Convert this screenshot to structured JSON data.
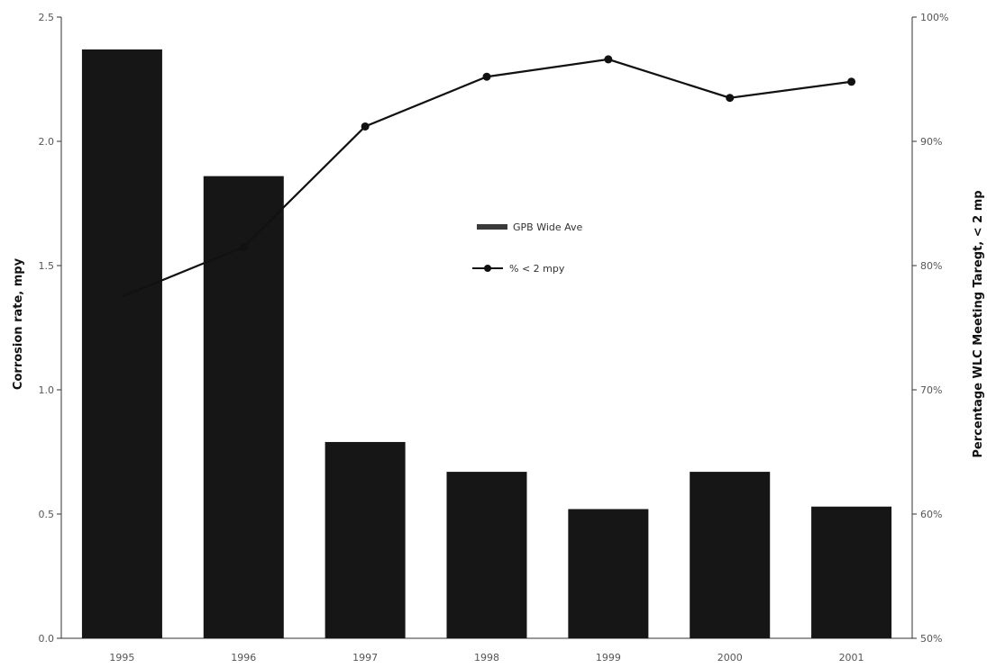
{
  "chart_data": {
    "type": "bar",
    "categories": [
      "1995",
      "1996",
      "1997",
      "1998",
      "1999",
      "2000",
      "2001"
    ],
    "series": [
      {
        "name": "GPB Wide Ave",
        "type": "bar",
        "axis": "left",
        "values": [
          2.37,
          1.86,
          0.79,
          0.67,
          0.52,
          0.67,
          0.53
        ]
      },
      {
        "name": "% < 2 mpy",
        "type": "line",
        "axis": "right",
        "values": [
          77.5,
          81.5,
          91.2,
          95.2,
          96.6,
          93.5,
          94.8
        ]
      }
    ],
    "ylabel": "Corrosion rate, mpy",
    "y2label": "Percentage WLC Meeting Taregt, < 2 mp",
    "ylim": [
      0,
      2.5
    ],
    "y2lim": [
      50,
      100
    ],
    "yticks": [
      "0.0",
      "0.5",
      "1.0",
      "1.5",
      "2.0",
      "2.5"
    ],
    "y2ticks": [
      "50%",
      "60%",
      "70%",
      "80%",
      "90%",
      "100%"
    ],
    "legend_position": "center",
    "grid": false,
    "colors": {
      "bar": "#161616",
      "line": "#111111",
      "axis": "#333333"
    }
  }
}
